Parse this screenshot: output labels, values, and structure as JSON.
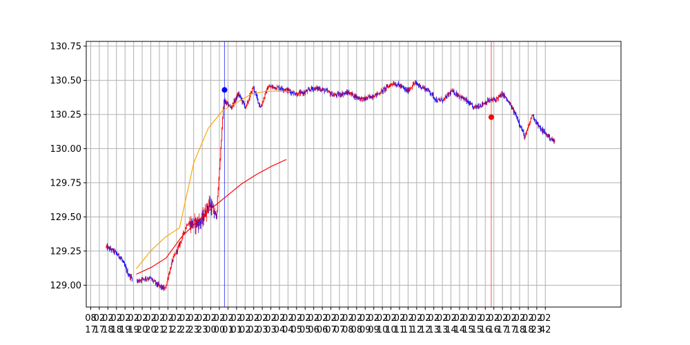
{
  "chart_data": {
    "type": "candlestick",
    "title": "",
    "xlabel": "",
    "ylabel": "",
    "ylim": [
      128.84,
      130.785
    ],
    "yticks": [
      129.0,
      129.25,
      129.5,
      129.75,
      130.0,
      130.25,
      130.5,
      130.75
    ],
    "ytick_labels": [
      "129.00",
      "129.25",
      "129.50",
      "129.75",
      "130.00",
      "130.25",
      "130.50",
      "130.75"
    ],
    "grid": true,
    "xtick_labels": [
      [
        "08",
        "17"
      ],
      [
        "02",
        "17"
      ],
      [
        "02",
        "18"
      ],
      [
        "02",
        "18"
      ],
      [
        "02",
        "19"
      ],
      [
        "02",
        "19"
      ],
      [
        "02",
        "20"
      ],
      [
        "02",
        "20"
      ],
      [
        "02",
        "21"
      ],
      [
        "02",
        "21"
      ],
      [
        "02",
        "22"
      ],
      [
        "02",
        "22"
      ],
      [
        "02",
        "23"
      ],
      [
        "02",
        "23"
      ],
      [
        "02",
        "00"
      ],
      [
        "02",
        "00"
      ],
      [
        "02",
        "01"
      ],
      [
        "02",
        "01"
      ],
      [
        "02",
        "02"
      ],
      [
        "02",
        "02"
      ],
      [
        "02",
        "03"
      ],
      [
        "02",
        "03"
      ],
      [
        "02",
        "04"
      ],
      [
        "02",
        "04"
      ],
      [
        "02",
        "05"
      ],
      [
        "02",
        "05"
      ],
      [
        "02",
        "06"
      ],
      [
        "02",
        "06"
      ],
      [
        "02",
        "07"
      ],
      [
        "02",
        "07"
      ],
      [
        "02",
        "08"
      ],
      [
        "02",
        "08"
      ],
      [
        "02",
        "09"
      ],
      [
        "02",
        "09"
      ],
      [
        "02",
        "10"
      ],
      [
        "02",
        "10"
      ],
      [
        "02",
        "11"
      ],
      [
        "02",
        "11"
      ],
      [
        "02",
        "12"
      ],
      [
        "02",
        "12"
      ],
      [
        "02",
        "13"
      ],
      [
        "02",
        "13"
      ],
      [
        "02",
        "14"
      ],
      [
        "02",
        "14"
      ],
      [
        "02",
        "15"
      ],
      [
        "02",
        "15"
      ],
      [
        "02",
        "16"
      ],
      [
        "02",
        "16"
      ],
      [
        "02",
        "17"
      ],
      [
        "02",
        "17"
      ],
      [
        "02",
        "18"
      ],
      [
        "02",
        "18"
      ],
      [
        "02",
        "23"
      ],
      [
        "02",
        "42"
      ]
    ],
    "anchors": [
      [
        0,
        129.28
      ],
      [
        1,
        129.25
      ],
      [
        2,
        129.2
      ],
      [
        3,
        129.08
      ],
      [
        4,
        129.02
      ],
      [
        5,
        129.05
      ],
      [
        6,
        129.05
      ],
      [
        7,
        129.0
      ],
      [
        8,
        128.97
      ],
      [
        9,
        129.18
      ],
      [
        10,
        129.3
      ],
      [
        11,
        129.45
      ],
      [
        12,
        129.45
      ],
      [
        13,
        129.47
      ],
      [
        14,
        129.6
      ],
      [
        15,
        129.5
      ],
      [
        16,
        130.35
      ],
      [
        17,
        130.3
      ],
      [
        18,
        130.4
      ],
      [
        19,
        130.3
      ],
      [
        20,
        130.45
      ],
      [
        21,
        130.3
      ],
      [
        22,
        130.45
      ],
      [
        23,
        130.45
      ],
      [
        24,
        130.44
      ],
      [
        25,
        130.42
      ],
      [
        26,
        130.4
      ],
      [
        27,
        130.41
      ],
      [
        28,
        130.44
      ],
      [
        29,
        130.44
      ],
      [
        30,
        130.42
      ],
      [
        31,
        130.39
      ],
      [
        32,
        130.4
      ],
      [
        33,
        130.41
      ],
      [
        34,
        130.38
      ],
      [
        35,
        130.36
      ],
      [
        36,
        130.38
      ],
      [
        37,
        130.4
      ],
      [
        38,
        130.44
      ],
      [
        39,
        130.48
      ],
      [
        40,
        130.46
      ],
      [
        41,
        130.42
      ],
      [
        42,
        130.48
      ],
      [
        43,
        130.45
      ],
      [
        44,
        130.42
      ],
      [
        45,
        130.35
      ],
      [
        46,
        130.36
      ],
      [
        47,
        130.42
      ],
      [
        48,
        130.39
      ],
      [
        49,
        130.35
      ],
      [
        50,
        130.3
      ],
      [
        51,
        130.32
      ],
      [
        52,
        130.35
      ],
      [
        53,
        130.36
      ],
      [
        54,
        130.4
      ],
      [
        55,
        130.32
      ],
      [
        56,
        130.22
      ],
      [
        57,
        130.08
      ],
      [
        58,
        130.25
      ],
      [
        59,
        130.15
      ],
      [
        60,
        130.1
      ],
      [
        61,
        130.05
      ],
      [
        62,
        130.12
      ]
    ],
    "bars_per_hour": 21,
    "hour_start": 2,
    "series": [
      {
        "kind": "line",
        "color": "#ffa500",
        "start_hour": 5.3,
        "values": [
          129.12,
          129.25,
          129.35,
          129.42,
          129.9,
          130.15,
          130.28,
          130.34,
          130.4,
          130.42,
          130.42,
          130.42
        ]
      },
      {
        "kind": "line",
        "color": "#ff0000",
        "start_hour": 5.3,
        "values": [
          129.08,
          129.13,
          129.2,
          129.35,
          129.46,
          129.56,
          129.65,
          129.74,
          129.81,
          129.87,
          129.92
        ]
      }
    ],
    "vlines": [
      {
        "hour": 15.6,
        "color": "#0000ff"
      },
      {
        "hour": 46.7,
        "color": "#ff0000"
      }
    ],
    "markers": [
      {
        "hour": 15.6,
        "y": 130.43,
        "color": "#0000ff"
      },
      {
        "hour": 46.7,
        "y": 130.23,
        "color": "#ff0000"
      }
    ],
    "colors": {
      "up": "#ff0000",
      "down": "#0000ff",
      "grid": "#b0b0b0",
      "axis": "#000000"
    }
  }
}
